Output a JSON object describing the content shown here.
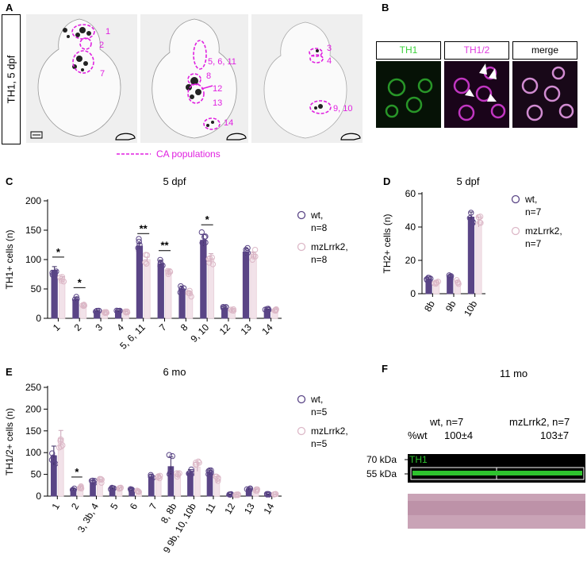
{
  "panels": {
    "A": {
      "letter": "A",
      "side_label": "TH1, 5 dpf",
      "ring_labels": [
        "1",
        "2",
        "7",
        "5, 6, 11",
        "8",
        "12",
        "13",
        "14",
        "3",
        "4",
        "9, 10"
      ],
      "legend": "CA populations"
    },
    "B": {
      "letter": "B",
      "channels": [
        "TH1",
        "TH1/2",
        "merge"
      ],
      "colors": {
        "th1": "#3bd23b",
        "th12": "#e03ce0",
        "merge": "#000000"
      }
    },
    "C": {
      "letter": "C",
      "title": "5 dpf"
    },
    "D": {
      "letter": "D",
      "title": "5 dpf"
    },
    "E": {
      "letter": "E",
      "title": "6 mo"
    },
    "F": {
      "letter": "F",
      "title": "11 mo",
      "col1": "wt, n=7",
      "col2": "mzLrrk2, n=7",
      "row_label": "%wt",
      "val1": "100±4",
      "val2": "103±7",
      "band_label": "TH1",
      "kda70": "70 kDa",
      "kda55": "55 kDa"
    }
  },
  "colors": {
    "wt": "#5a4586",
    "mut": "#e8cfd8",
    "magenta": "#e020e0"
  },
  "chart_data": [
    {
      "id": "C",
      "type": "bar",
      "title": "5 dpf",
      "xlabel": "",
      "ylabel": "TH1+ cells (n)",
      "ylim": [
        0,
        200
      ],
      "yticks": [
        0,
        50,
        100,
        150,
        200
      ],
      "categories": [
        "1",
        "2",
        "3",
        "4",
        "5, 6, 11",
        "7",
        "8",
        "9, 10",
        "12",
        "13",
        "14"
      ],
      "series": [
        {
          "name": "wt,\nn=8",
          "values": [
            82,
            32,
            12,
            12,
            123,
            93,
            50,
            133,
            17,
            113,
            15
          ],
          "errors": [
            6,
            4,
            1,
            1,
            5,
            6,
            5,
            10,
            2,
            6,
            1
          ]
        },
        {
          "name": "mzLrrk2,\nn=8",
          "values": [
            67,
            21,
            10,
            11,
            100,
            77,
            42,
            102,
            14,
            108,
            14
          ],
          "errors": [
            4,
            2,
            1,
            1,
            4,
            4,
            4,
            8,
            2,
            5,
            1
          ]
        }
      ],
      "significance": [
        {
          "cat": 0,
          "label": "*"
        },
        {
          "cat": 1,
          "label": "*"
        },
        {
          "cat": 4,
          "label": "**"
        },
        {
          "cat": 5,
          "label": "**"
        },
        {
          "cat": 7,
          "label": "*"
        }
      ],
      "legend": "right"
    },
    {
      "id": "D",
      "type": "bar",
      "title": "5 dpf",
      "xlabel": "",
      "ylabel": "TH2+ cells (n)",
      "ylim": [
        0,
        60
      ],
      "yticks": [
        0,
        20,
        40,
        60
      ],
      "categories": [
        "8b",
        "9b",
        "10b"
      ],
      "series": [
        {
          "name": "wt,\nn=7",
          "values": [
            9,
            10,
            46
          ],
          "errors": [
            1,
            1,
            3
          ]
        },
        {
          "name": "mzLrrk2,\nn=7",
          "values": [
            7,
            7,
            43
          ],
          "errors": [
            1,
            1,
            3
          ]
        }
      ],
      "legend": "right"
    },
    {
      "id": "E",
      "type": "bar",
      "title": "6 mo",
      "xlabel": "",
      "ylabel": "TH1/2+ cells (n)",
      "ylim": [
        0,
        250
      ],
      "yticks": [
        0,
        50,
        100,
        150,
        200,
        250
      ],
      "categories": [
        "1",
        "2",
        "3, 3b, 4",
        "5",
        "6",
        "7",
        "8, 8b",
        "9 9b, 10, 10b",
        "11",
        "12",
        "13",
        "14"
      ],
      "series": [
        {
          "name": "wt,\nn=5",
          "values": [
            93,
            15,
            31,
            18,
            15,
            45,
            68,
            55,
            55,
            4,
            16,
            4
          ],
          "errors": [
            22,
            2,
            5,
            2,
            3,
            4,
            22,
            6,
            5,
            1,
            2,
            1
          ]
        },
        {
          "name": "mzLrrk2,\nn=5",
          "values": [
            133,
            20,
            35,
            17,
            11,
            45,
            50,
            67,
            38,
            3,
            14,
            4
          ],
          "errors": [
            18,
            2,
            4,
            2,
            2,
            4,
            8,
            10,
            7,
            1,
            2,
            1
          ]
        }
      ],
      "significance": [
        {
          "cat": 1,
          "label": "*"
        }
      ],
      "legend": "right"
    }
  ]
}
